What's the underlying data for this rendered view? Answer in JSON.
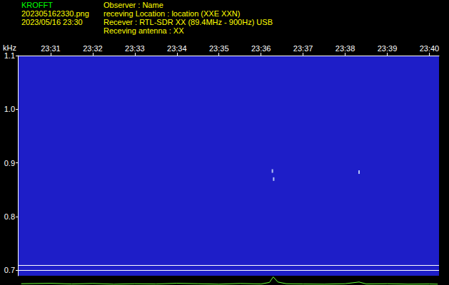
{
  "header": {
    "program": "KROFFT",
    "file": "202305162330.png",
    "datetime": "2023/05/16 23:30",
    "observer": "Observer : Name",
    "location": "receving Location : location (XXE XXN)",
    "receiver": "Recever : RTL-SDR XX (89.4MHz - 900Hz) USB",
    "antenna": "Receving antenna : XX"
  },
  "chart_data": [
    {
      "type": "scatter",
      "ylabel": "kHz",
      "x": [
        1416.27,
        1416.3,
        1418.33
      ],
      "values": [
        0.885,
        0.87,
        0.883
      ],
      "color": "#d8ecff",
      "xlim": [
        1410.22,
        1420.23
      ],
      "xticks": [
        {
          "value": 1411,
          "label": "23:31"
        },
        {
          "value": 1412,
          "label": "23:32"
        },
        {
          "value": 1413,
          "label": "23:33"
        },
        {
          "value": 1414,
          "label": "23:34"
        },
        {
          "value": 1415,
          "label": "23:35"
        },
        {
          "value": 1416,
          "label": "23:36"
        },
        {
          "value": 1417,
          "label": "23:37"
        },
        {
          "value": 1418,
          "label": "23:38"
        },
        {
          "value": 1419,
          "label": "23:39"
        },
        {
          "value": 1420,
          "label": "23:40"
        }
      ],
      "ylim": [
        0.69,
        1.1
      ],
      "yticks": [
        0.7,
        0.8,
        0.9,
        {
          "value": 1.0,
          "label": "1.0"
        },
        1.1
      ],
      "hlines": [
        0.697,
        0.712
      ],
      "grid": false
    },
    {
      "type": "line",
      "x": [
        1410.3,
        1411,
        1411.5,
        1412,
        1412.5,
        1413,
        1413.5,
        1414,
        1414.5,
        1415,
        1415.5,
        1416,
        1416.2,
        1416.29,
        1416.4,
        1416.6,
        1417,
        1417.5,
        1418,
        1418.33,
        1418.5,
        1419,
        1419.5,
        1420,
        1420.2
      ],
      "values": [
        0.15,
        0.2,
        0.12,
        0.18,
        0.1,
        0.15,
        0.12,
        0.2,
        0.15,
        0.1,
        0.18,
        0.12,
        0.3,
        0.95,
        0.35,
        0.15,
        0.12,
        0.1,
        0.15,
        0.35,
        0.12,
        0.15,
        0.1,
        0.12,
        0.1
      ],
      "color": "#66ff33",
      "xlim": [
        1410.22,
        1420.23
      ],
      "ylim": [
        0,
        1
      ],
      "tick_labels": false
    }
  ]
}
